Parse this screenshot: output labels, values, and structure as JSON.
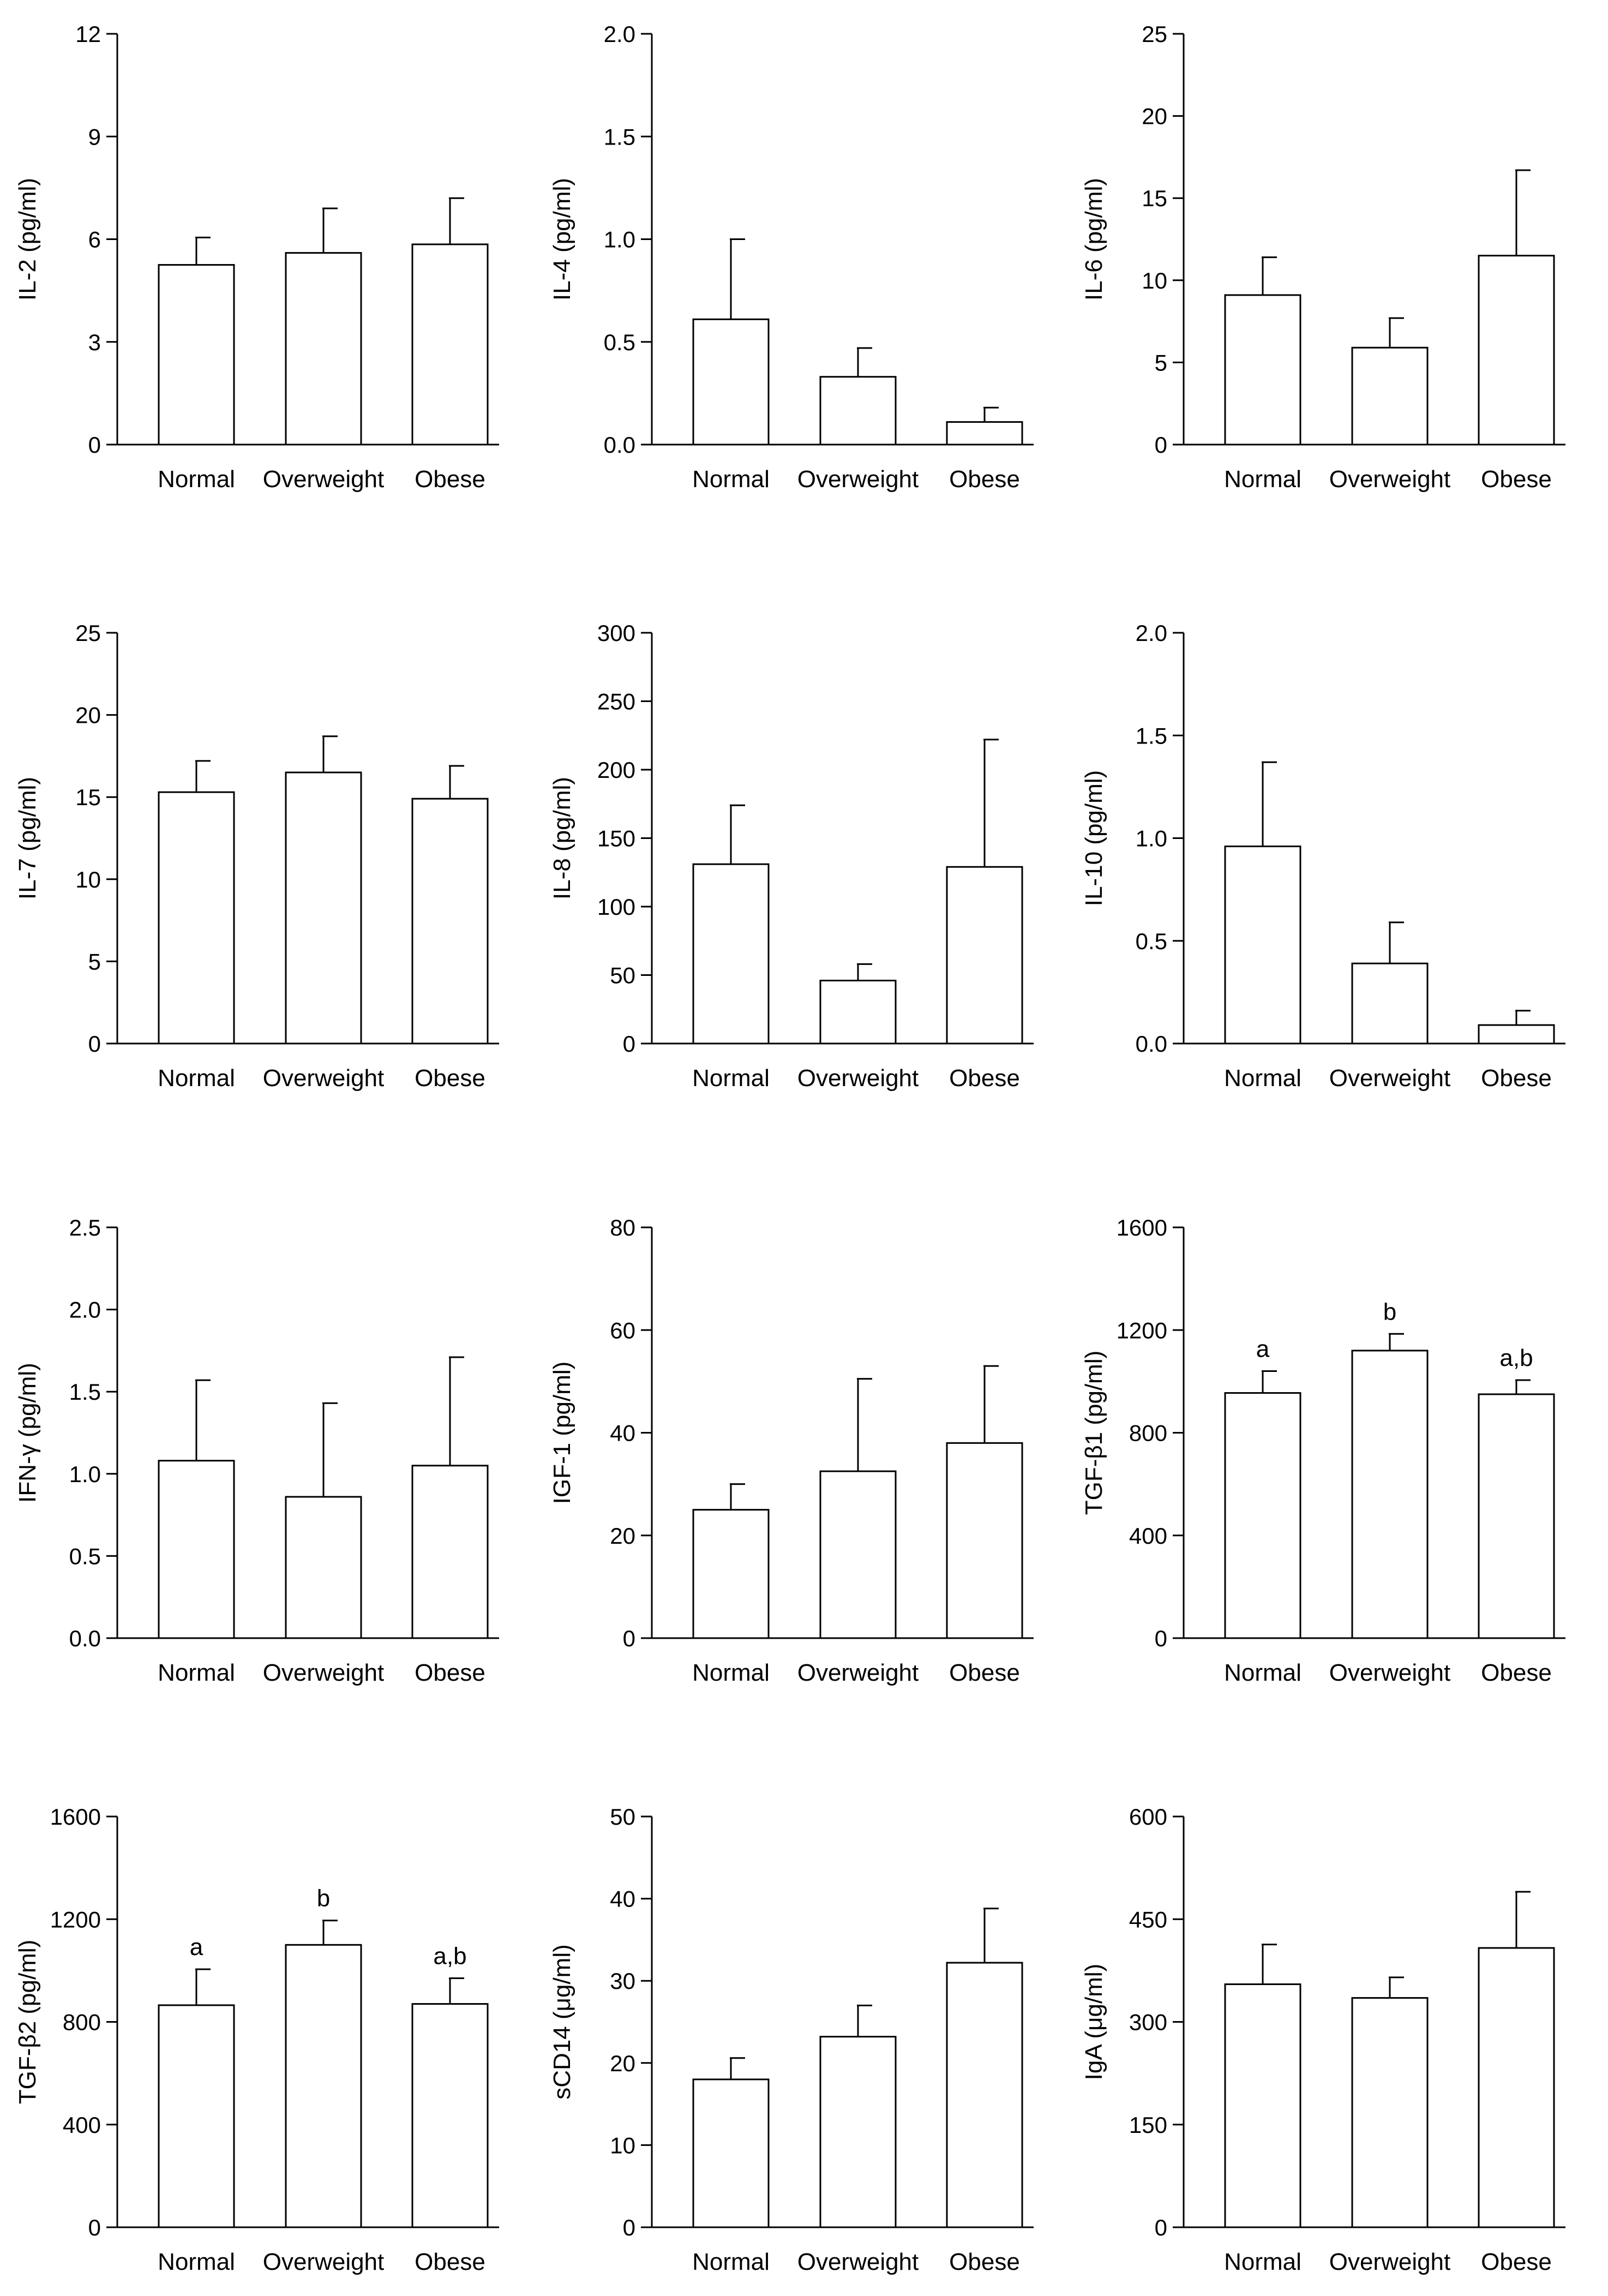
{
  "figure": {
    "description_free": true
  },
  "chart_data": [
    {
      "type": "bar",
      "ylabel": "IL-2  (pg/ml)",
      "categories": [
        "Normal",
        "Overweight",
        "Obese"
      ],
      "values": [
        5.25,
        5.6,
        5.85
      ],
      "errors": [
        0.8,
        1.3,
        1.35
      ],
      "annotations": [
        "",
        "",
        ""
      ],
      "ylim": [
        0,
        12
      ],
      "yticks": [
        0,
        3,
        6,
        9,
        12
      ],
      "ytick_labels": [
        "0",
        "3",
        "6",
        "9",
        "12"
      ]
    },
    {
      "type": "bar",
      "ylabel": "IL-4  (pg/ml)",
      "categories": [
        "Normal",
        "Overweight",
        "Obese"
      ],
      "values": [
        0.61,
        0.33,
        0.11
      ],
      "errors": [
        0.39,
        0.14,
        0.07
      ],
      "annotations": [
        "",
        "",
        ""
      ],
      "ylim": [
        0,
        2.0
      ],
      "yticks": [
        0,
        0.5,
        1.0,
        1.5,
        2.0
      ],
      "ytick_labels": [
        "0.0",
        "0.5",
        "1.0",
        "1.5",
        "2.0"
      ]
    },
    {
      "type": "bar",
      "ylabel": "IL-6  (pg/ml)",
      "categories": [
        "Normal",
        "Overweight",
        "Obese"
      ],
      "values": [
        9.1,
        5.9,
        11.5
      ],
      "errors": [
        2.3,
        1.8,
        5.2
      ],
      "annotations": [
        "",
        "",
        ""
      ],
      "ylim": [
        0,
        25
      ],
      "yticks": [
        0,
        5,
        10,
        15,
        20,
        25
      ],
      "ytick_labels": [
        "0",
        "5",
        "10",
        "15",
        "20",
        "25"
      ]
    },
    {
      "type": "bar",
      "ylabel": "IL-7  (pg/ml)",
      "categories": [
        "Normal",
        "Overweight",
        "Obese"
      ],
      "values": [
        15.3,
        16.5,
        14.9
      ],
      "errors": [
        1.9,
        2.2,
        2.0
      ],
      "annotations": [
        "",
        "",
        ""
      ],
      "ylim": [
        0,
        25
      ],
      "yticks": [
        0,
        5,
        10,
        15,
        20,
        25
      ],
      "ytick_labels": [
        "0",
        "5",
        "10",
        "15",
        "20",
        "25"
      ]
    },
    {
      "type": "bar",
      "ylabel": "IL-8  (pg/ml)",
      "categories": [
        "Normal",
        "Overweight",
        "Obese"
      ],
      "values": [
        131,
        46,
        129
      ],
      "errors": [
        43,
        12,
        93
      ],
      "annotations": [
        "",
        "",
        ""
      ],
      "ylim": [
        0,
        300
      ],
      "yticks": [
        0,
        50,
        100,
        150,
        200,
        250,
        300
      ],
      "ytick_labels": [
        "0",
        "50",
        "100",
        "150",
        "200",
        "250",
        "300"
      ]
    },
    {
      "type": "bar",
      "ylabel": "IL-10  (pg/ml)",
      "categories": [
        "Normal",
        "Overweight",
        "Obese"
      ],
      "values": [
        0.96,
        0.39,
        0.09
      ],
      "errors": [
        0.41,
        0.2,
        0.07
      ],
      "annotations": [
        "",
        "",
        ""
      ],
      "ylim": [
        0,
        2.0
      ],
      "yticks": [
        0,
        0.5,
        1.0,
        1.5,
        2.0
      ],
      "ytick_labels": [
        "0.0",
        "0.5",
        "1.0",
        "1.5",
        "2.0"
      ]
    },
    {
      "type": "bar",
      "ylabel": "IFN-γ  (pg/ml)",
      "categories": [
        "Normal",
        "Overweight",
        "Obese"
      ],
      "values": [
        1.08,
        0.86,
        1.05
      ],
      "errors": [
        0.49,
        0.57,
        0.66
      ],
      "annotations": [
        "",
        "",
        ""
      ],
      "ylim": [
        0,
        2.5
      ],
      "yticks": [
        0,
        0.5,
        1.0,
        1.5,
        2.0,
        2.5
      ],
      "ytick_labels": [
        "0.0",
        "0.5",
        "1.0",
        "1.5",
        "2.0",
        "2.5"
      ]
    },
    {
      "type": "bar",
      "ylabel": "IGF-1  (pg/ml)",
      "categories": [
        "Normal",
        "Overweight",
        "Obese"
      ],
      "values": [
        25,
        32.5,
        38
      ],
      "errors": [
        5,
        18,
        15
      ],
      "annotations": [
        "",
        "",
        ""
      ],
      "ylim": [
        0,
        80
      ],
      "yticks": [
        0,
        20,
        40,
        60,
        80
      ],
      "ytick_labels": [
        "0",
        "20",
        "40",
        "60",
        "80"
      ]
    },
    {
      "type": "bar",
      "ylabel": "TGF-β1  (pg/ml)",
      "categories": [
        "Normal",
        "Overweight",
        "Obese"
      ],
      "values": [
        955,
        1120,
        950
      ],
      "errors": [
        85,
        65,
        55
      ],
      "annotations": [
        "a",
        "b",
        "a,b"
      ],
      "ylim": [
        0,
        1600
      ],
      "yticks": [
        0,
        400,
        800,
        1200,
        1600
      ],
      "ytick_labels": [
        "0",
        "400",
        "800",
        "1200",
        "1600"
      ]
    },
    {
      "type": "bar",
      "ylabel": "TGF-β2  (pg/ml)",
      "categories": [
        "Normal",
        "Overweight",
        "Obese"
      ],
      "values": [
        865,
        1100,
        870
      ],
      "errors": [
        140,
        95,
        100
      ],
      "annotations": [
        "a",
        "b",
        "a,b"
      ],
      "ylim": [
        0,
        1600
      ],
      "yticks": [
        0,
        400,
        800,
        1200,
        1600
      ],
      "ytick_labels": [
        "0",
        "400",
        "800",
        "1200",
        "1600"
      ]
    },
    {
      "type": "bar",
      "ylabel": "sCD14  (μg/ml)",
      "categories": [
        "Normal",
        "Overweight",
        "Obese"
      ],
      "values": [
        18,
        23.2,
        32.2
      ],
      "errors": [
        2.6,
        3.8,
        6.6
      ],
      "annotations": [
        "",
        "",
        ""
      ],
      "ylim": [
        0,
        50
      ],
      "yticks": [
        0,
        10,
        20,
        30,
        40,
        50
      ],
      "ytick_labels": [
        "0",
        "10",
        "20",
        "30",
        "40",
        "50"
      ]
    },
    {
      "type": "bar",
      "ylabel": "IgA  (μg/ml)",
      "categories": [
        "Normal",
        "Overweight",
        "Obese"
      ],
      "values": [
        355,
        335,
        408
      ],
      "errors": [
        58,
        30,
        82
      ],
      "annotations": [
        "",
        "",
        ""
      ],
      "ylim": [
        0,
        600
      ],
      "yticks": [
        0,
        150,
        300,
        450,
        600
      ],
      "ytick_labels": [
        "0",
        "150",
        "300",
        "450",
        "600"
      ]
    }
  ]
}
